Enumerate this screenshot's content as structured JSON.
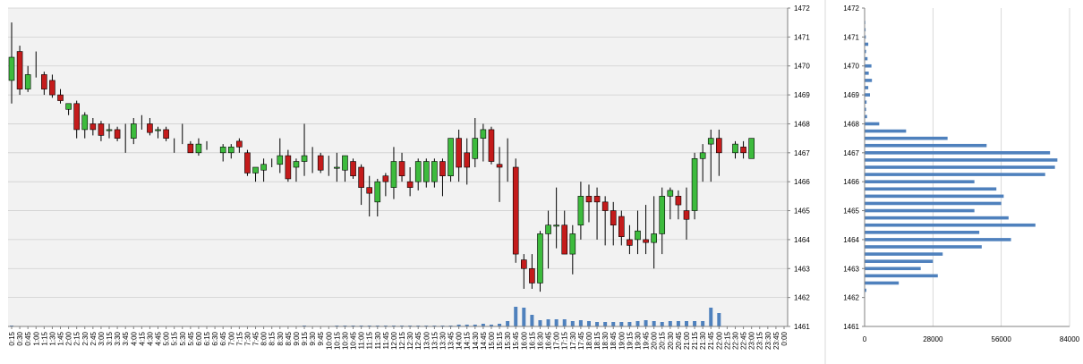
{
  "colors": {
    "plot_bg": "#f2f2f2",
    "grid": "#cfcfcf",
    "up": "#3dbb3d",
    "down": "#c41b1b",
    "wick": "#000000",
    "volume": "#4f81bd",
    "profile": "#4f81bd",
    "axis": "#808080"
  },
  "chart_data": [
    {
      "type": "candlestick",
      "title": "",
      "xlabel": "",
      "ylabel": "",
      "ylim": [
        1461,
        1472
      ],
      "y_ticks": [
        "1461",
        "1462",
        "1463",
        "1464",
        "1465",
        "1466",
        "1467",
        "1468",
        "1469",
        "1470",
        "1471",
        "1472"
      ],
      "grid": true,
      "x_tick_labels": [
        "0:15",
        "0:30",
        "0:45",
        "1:00",
        "1:15",
        "1:30",
        "1:45",
        "2:00",
        "2:15",
        "2:30",
        "2:45",
        "3:00",
        "3:15",
        "3:30",
        "3:45",
        "4:00",
        "4:15",
        "4:30",
        "4:45",
        "5:00",
        "5:15",
        "5:30",
        "5:45",
        "6:00",
        "6:15",
        "6:30",
        "6:45",
        "7:00",
        "7:15",
        "7:30",
        "7:45",
        "8:00",
        "8:15",
        "8:30",
        "8:45",
        "9:00",
        "9:15",
        "9:30",
        "9:45",
        "10:00",
        "10:15",
        "10:30",
        "10:45",
        "11:00",
        "11:15",
        "11:30",
        "11:45",
        "12:00",
        "12:15",
        "12:30",
        "12:45",
        "13:00",
        "13:15",
        "13:30",
        "13:45",
        "14:00",
        "14:15",
        "14:30",
        "14:45",
        "15:00",
        "15:15",
        "15:30",
        "15:45",
        "16:00",
        "16:15",
        "16:30",
        "16:45",
        "17:00",
        "17:15",
        "17:30",
        "17:45",
        "18:00",
        "18:15",
        "18:30",
        "18:45",
        "19:00",
        "19:15",
        "19:30",
        "19:45",
        "20:00",
        "20:15",
        "20:30",
        "20:45",
        "21:00",
        "21:15",
        "21:30",
        "21:45",
        "22:00",
        "22:15",
        "22:30",
        "22:45",
        "23:00",
        "23:15",
        "23:30",
        "23:45",
        "0:00"
      ],
      "candles": [
        {
          "x": "0:15",
          "o": 1469.5,
          "h": 1471.5,
          "l": 1468.7,
          "c": 1470.3
        },
        {
          "x": "0:30",
          "o": 1470.5,
          "h": 1470.7,
          "l": 1469.0,
          "c": 1469.2
        },
        {
          "x": "0:45",
          "o": 1469.2,
          "h": 1470.0,
          "l": 1469.1,
          "c": 1469.7
        },
        {
          "x": "1:00",
          "o": null,
          "h": 1470.5,
          "l": 1469.6,
          "c": null
        },
        {
          "x": "1:15",
          "o": 1469.7,
          "h": 1469.8,
          "l": 1469.0,
          "c": 1469.2
        },
        {
          "x": "1:30",
          "o": 1469.5,
          "h": 1469.7,
          "l": 1468.9,
          "c": 1469.0
        },
        {
          "x": "1:45",
          "o": 1469.0,
          "h": 1469.2,
          "l": 1468.7,
          "c": 1468.8
        },
        {
          "x": "2:00",
          "o": 1468.5,
          "h": 1468.7,
          "l": 1468.3,
          "c": 1468.7
        },
        {
          "x": "2:15",
          "o": 1468.7,
          "h": 1468.8,
          "l": 1467.5,
          "c": 1467.8
        },
        {
          "x": "2:30",
          "o": 1467.8,
          "h": 1468.4,
          "l": 1467.5,
          "c": 1468.3
        },
        {
          "x": "2:45",
          "o": 1468.0,
          "h": 1468.2,
          "l": 1467.6,
          "c": 1467.8
        },
        {
          "x": "3:00",
          "o": 1468.0,
          "h": 1468.1,
          "l": 1467.4,
          "c": 1467.6
        },
        {
          "x": "3:15",
          "o": 1467.8,
          "h": 1468.0,
          "l": 1467.5,
          "c": 1467.8
        },
        {
          "x": "3:30",
          "o": 1467.8,
          "h": 1467.9,
          "l": 1467.4,
          "c": 1467.5
        },
        {
          "x": "3:45",
          "o": null,
          "h": 1468.0,
          "l": 1467.0,
          "c": null
        },
        {
          "x": "4:00",
          "o": 1467.5,
          "h": 1468.2,
          "l": 1467.3,
          "c": 1468.0
        },
        {
          "x": "4:15",
          "o": null,
          "h": 1468.3,
          "l": 1467.8,
          "c": null
        },
        {
          "x": "4:30",
          "o": 1468.0,
          "h": 1468.2,
          "l": 1467.6,
          "c": 1467.7
        },
        {
          "x": "4:45",
          "o": 1467.8,
          "h": 1467.9,
          "l": 1467.5,
          "c": 1467.8
        },
        {
          "x": "5:00",
          "o": 1467.8,
          "h": 1467.9,
          "l": 1467.4,
          "c": 1467.5
        },
        {
          "x": "5:15",
          "o": null,
          "h": 1467.5,
          "l": 1467.0,
          "c": null
        },
        {
          "x": "5:30",
          "o": null,
          "h": 1468.0,
          "l": 1467.3,
          "c": null
        },
        {
          "x": "5:45",
          "o": 1467.3,
          "h": 1467.4,
          "l": 1467.0,
          "c": 1467.0
        },
        {
          "x": "6:00",
          "o": 1467.0,
          "h": 1467.5,
          "l": 1466.9,
          "c": 1467.3
        },
        {
          "x": "6:15",
          "o": null,
          "h": 1467.4,
          "l": 1467.1,
          "c": null
        },
        {
          "x": "6:30",
          "o": null,
          "h": null,
          "l": null,
          "c": null
        },
        {
          "x": "6:45",
          "o": 1467.0,
          "h": 1467.3,
          "l": 1466.7,
          "c": 1467.2
        },
        {
          "x": "7:00",
          "o": 1467.0,
          "h": 1467.3,
          "l": 1466.8,
          "c": 1467.2
        },
        {
          "x": "7:15",
          "o": 1467.4,
          "h": 1467.5,
          "l": 1467.0,
          "c": 1467.2
        },
        {
          "x": "7:30",
          "o": 1467.0,
          "h": 1467.1,
          "l": 1466.2,
          "c": 1466.3
        },
        {
          "x": "7:45",
          "o": 1466.3,
          "h": 1466.5,
          "l": 1466.0,
          "c": 1466.5
        },
        {
          "x": "8:00",
          "o": 1466.4,
          "h": 1466.8,
          "l": 1466.0,
          "c": 1466.6
        },
        {
          "x": "8:15",
          "o": null,
          "h": 1466.8,
          "l": 1466.5,
          "c": null
        },
        {
          "x": "8:30",
          "o": 1466.6,
          "h": 1467.5,
          "l": 1466.3,
          "c": 1466.9
        },
        {
          "x": "8:45",
          "o": 1466.9,
          "h": 1467.1,
          "l": 1466.0,
          "c": 1466.1
        },
        {
          "x": "9:00",
          "o": 1466.5,
          "h": 1466.8,
          "l": 1466.0,
          "c": 1466.7
        },
        {
          "x": "9:15",
          "o": 1466.7,
          "h": 1468.0,
          "l": 1466.2,
          "c": 1466.9
        },
        {
          "x": "9:30",
          "o": null,
          "h": 1467.2,
          "l": 1466.3,
          "c": null
        },
        {
          "x": "9:45",
          "o": 1466.9,
          "h": 1467.0,
          "l": 1466.3,
          "c": 1466.4
        },
        {
          "x": "10:00",
          "o": null,
          "h": 1466.9,
          "l": 1466.2,
          "c": null
        },
        {
          "x": "10:15",
          "o": 1466.5,
          "h": 1467.0,
          "l": 1466.0,
          "c": 1466.5
        },
        {
          "x": "10:30",
          "o": 1466.4,
          "h": 1466.9,
          "l": 1466.0,
          "c": 1466.9
        },
        {
          "x": "10:45",
          "o": 1466.7,
          "h": 1466.8,
          "l": 1466.1,
          "c": 1466.2
        },
        {
          "x": "11:00",
          "o": 1466.5,
          "h": 1466.6,
          "l": 1465.2,
          "c": 1465.8
        },
        {
          "x": "11:15",
          "o": 1465.8,
          "h": 1466.2,
          "l": 1464.8,
          "c": 1465.6
        },
        {
          "x": "11:30",
          "o": 1465.3,
          "h": 1466.1,
          "l": 1464.8,
          "c": 1466.0
        },
        {
          "x": "11:45",
          "o": 1466.2,
          "h": 1466.3,
          "l": 1465.5,
          "c": 1466.0
        },
        {
          "x": "12:00",
          "o": 1465.8,
          "h": 1467.2,
          "l": 1465.4,
          "c": 1466.7
        },
        {
          "x": "12:15",
          "o": 1466.7,
          "h": 1467.0,
          "l": 1466.0,
          "c": 1466.2
        },
        {
          "x": "12:30",
          "o": 1466.0,
          "h": 1466.5,
          "l": 1465.5,
          "c": 1465.8
        },
        {
          "x": "12:45",
          "o": 1466.0,
          "h": 1466.8,
          "l": 1465.7,
          "c": 1466.7
        },
        {
          "x": "13:00",
          "o": 1466.0,
          "h": 1466.8,
          "l": 1465.8,
          "c": 1466.7
        },
        {
          "x": "13:15",
          "o": 1466.0,
          "h": 1466.8,
          "l": 1465.8,
          "c": 1466.7
        },
        {
          "x": "13:30",
          "o": 1466.7,
          "h": 1466.8,
          "l": 1465.5,
          "c": 1466.2
        },
        {
          "x": "13:45",
          "o": 1466.2,
          "h": 1467.5,
          "l": 1466.0,
          "c": 1467.5
        },
        {
          "x": "14:00",
          "o": 1467.5,
          "h": 1467.8,
          "l": 1466.0,
          "c": 1466.5
        },
        {
          "x": "14:15",
          "o": 1467.0,
          "h": 1467.5,
          "l": 1465.9,
          "c": 1466.5
        },
        {
          "x": "14:30",
          "o": 1466.8,
          "h": 1468.2,
          "l": 1466.5,
          "c": 1467.5
        },
        {
          "x": "14:45",
          "o": 1467.5,
          "h": 1468.0,
          "l": 1466.7,
          "c": 1467.8
        },
        {
          "x": "15:00",
          "o": 1467.8,
          "h": 1467.9,
          "l": 1466.6,
          "c": 1466.7
        },
        {
          "x": "15:15",
          "o": 1466.6,
          "h": 1467.2,
          "l": 1465.3,
          "c": 1466.5
        },
        {
          "x": "15:30",
          "o": null,
          "h": 1467.5,
          "l": 1466.0,
          "c": null
        },
        {
          "x": "15:45",
          "o": 1466.5,
          "h": 1466.8,
          "l": 1463.2,
          "c": 1463.5
        },
        {
          "x": "16:00",
          "o": 1463.3,
          "h": 1463.5,
          "l": 1462.3,
          "c": 1463.0
        },
        {
          "x": "16:15",
          "o": 1463.0,
          "h": 1463.5,
          "l": 1462.3,
          "c": 1462.5
        },
        {
          "x": "16:30",
          "o": 1462.5,
          "h": 1464.3,
          "l": 1462.2,
          "c": 1464.2
        },
        {
          "x": "16:45",
          "o": 1464.2,
          "h": 1465.0,
          "l": 1463.0,
          "c": 1464.5
        },
        {
          "x": "17:00",
          "o": 1464.5,
          "h": 1465.8,
          "l": 1463.7,
          "c": 1464.5
        },
        {
          "x": "17:15",
          "o": 1464.5,
          "h": 1465.0,
          "l": 1463.5,
          "c": 1463.5
        },
        {
          "x": "17:30",
          "o": 1463.5,
          "h": 1464.5,
          "l": 1462.8,
          "c": 1464.2
        },
        {
          "x": "17:45",
          "o": 1464.5,
          "h": 1466.0,
          "l": 1464.0,
          "c": 1465.5
        },
        {
          "x": "18:00",
          "o": 1465.5,
          "h": 1465.9,
          "l": 1464.6,
          "c": 1465.3
        },
        {
          "x": "18:15",
          "o": 1465.5,
          "h": 1465.8,
          "l": 1464.0,
          "c": 1465.3
        },
        {
          "x": "18:30",
          "o": 1465.3,
          "h": 1465.5,
          "l": 1463.8,
          "c": 1465.0
        },
        {
          "x": "18:45",
          "o": 1465.0,
          "h": 1465.3,
          "l": 1463.8,
          "c": 1464.5
        },
        {
          "x": "19:00",
          "o": 1464.8,
          "h": 1465.0,
          "l": 1463.8,
          "c": 1464.1
        },
        {
          "x": "19:15",
          "o": 1464.0,
          "h": 1464.5,
          "l": 1463.5,
          "c": 1463.8
        },
        {
          "x": "19:30",
          "o": 1464.0,
          "h": 1465.0,
          "l": 1463.5,
          "c": 1464.3
        },
        {
          "x": "19:45",
          "o": 1464.0,
          "h": 1465.2,
          "l": 1463.5,
          "c": 1463.9
        },
        {
          "x": "20:00",
          "o": 1463.9,
          "h": 1465.5,
          "l": 1463.0,
          "c": 1464.2
        },
        {
          "x": "20:15",
          "o": 1464.2,
          "h": 1465.8,
          "l": 1463.5,
          "c": 1465.5
        },
        {
          "x": "20:30",
          "o": 1465.5,
          "h": 1465.8,
          "l": 1464.7,
          "c": 1465.7
        },
        {
          "x": "20:45",
          "o": 1465.5,
          "h": 1465.7,
          "l": 1464.7,
          "c": 1465.2
        },
        {
          "x": "21:00",
          "o": 1465.0,
          "h": 1465.8,
          "l": 1464.0,
          "c": 1464.7
        },
        {
          "x": "21:15",
          "o": 1465.0,
          "h": 1467.0,
          "l": 1464.7,
          "c": 1466.8
        },
        {
          "x": "21:30",
          "o": 1466.8,
          "h": 1467.3,
          "l": 1466.0,
          "c": 1467.0
        },
        {
          "x": "21:45",
          "o": 1467.3,
          "h": 1467.8,
          "l": 1466.0,
          "c": 1467.5
        },
        {
          "x": "22:00",
          "o": 1467.5,
          "h": 1467.8,
          "l": 1466.2,
          "c": 1467.0
        },
        {
          "x": "22:15",
          "o": null,
          "h": null,
          "l": null,
          "c": null
        },
        {
          "x": "22:30",
          "o": 1467.0,
          "h": 1467.4,
          "l": 1466.8,
          "c": 1467.3
        },
        {
          "x": "22:45",
          "o": 1467.2,
          "h": 1467.4,
          "l": 1466.8,
          "c": 1467.0
        },
        {
          "x": "23:00",
          "o": 1466.8,
          "h": 1467.5,
          "l": 1466.8,
          "c": 1467.5
        }
      ],
      "volume": [
        1,
        0,
        0,
        0,
        0,
        0,
        0,
        0,
        0,
        0,
        0,
        0,
        0,
        0,
        0,
        0,
        0,
        0,
        0,
        0,
        0,
        0,
        0,
        0,
        0,
        0,
        0,
        0,
        0,
        0,
        0,
        0,
        0,
        0,
        0,
        0,
        1,
        0,
        0,
        0,
        1,
        1,
        1,
        1,
        1,
        1,
        1,
        1,
        1,
        1,
        1,
        1,
        1,
        1,
        1,
        2,
        2,
        2,
        3,
        2,
        3,
        6,
        22,
        21,
        13,
        7,
        8,
        8,
        8,
        6,
        7,
        6,
        5,
        5,
        5,
        5,
        5,
        6,
        7,
        6,
        5,
        6,
        6,
        6,
        6,
        6,
        21,
        15,
        0,
        0,
        0,
        0,
        0,
        0,
        0,
        0
      ]
    },
    {
      "type": "bar",
      "orientation": "horizontal",
      "title": "",
      "xlabel": "",
      "ylabel": "",
      "xlim": [
        0,
        84000
      ],
      "ylim": [
        1461,
        1472
      ],
      "x_ticks": [
        "0",
        "28000",
        "56000",
        "84000"
      ],
      "y_ticks": [
        "1461",
        "1462",
        "1463",
        "1464",
        "1465",
        "1466",
        "1467",
        "1468",
        "1469",
        "1470",
        "1471",
        "1472"
      ],
      "grid": true,
      "bins": [
        {
          "price": 1462.25,
          "value": 700
        },
        {
          "price": 1462.5,
          "value": 14000
        },
        {
          "price": 1462.75,
          "value": 30000
        },
        {
          "price": 1463.0,
          "value": 23000
        },
        {
          "price": 1463.25,
          "value": 28000
        },
        {
          "price": 1463.5,
          "value": 32000
        },
        {
          "price": 1463.75,
          "value": 48000
        },
        {
          "price": 1464.0,
          "value": 60000
        },
        {
          "price": 1464.25,
          "value": 47000
        },
        {
          "price": 1464.5,
          "value": 70000
        },
        {
          "price": 1464.75,
          "value": 59000
        },
        {
          "price": 1465.0,
          "value": 45000
        },
        {
          "price": 1465.25,
          "value": 56000
        },
        {
          "price": 1465.5,
          "value": 57000
        },
        {
          "price": 1465.75,
          "value": 54000
        },
        {
          "price": 1466.0,
          "value": 45000
        },
        {
          "price": 1466.25,
          "value": 74000
        },
        {
          "price": 1466.5,
          "value": 78000
        },
        {
          "price": 1466.75,
          "value": 79000
        },
        {
          "price": 1467.0,
          "value": 76000
        },
        {
          "price": 1467.25,
          "value": 50000
        },
        {
          "price": 1467.5,
          "value": 34000
        },
        {
          "price": 1467.75,
          "value": 17000
        },
        {
          "price": 1468.0,
          "value": 6000
        },
        {
          "price": 1468.25,
          "value": 1000
        },
        {
          "price": 1468.5,
          "value": 600
        },
        {
          "price": 1468.75,
          "value": 800
        },
        {
          "price": 1469.0,
          "value": 2200
        },
        {
          "price": 1469.25,
          "value": 1500
        },
        {
          "price": 1469.5,
          "value": 3000
        },
        {
          "price": 1469.75,
          "value": 1700
        },
        {
          "price": 1470.0,
          "value": 2800
        },
        {
          "price": 1470.25,
          "value": 1200
        },
        {
          "price": 1470.5,
          "value": 600
        },
        {
          "price": 1470.75,
          "value": 1500
        },
        {
          "price": 1471.0,
          "value": 500
        },
        {
          "price": 1471.25,
          "value": 400
        },
        {
          "price": 1471.5,
          "value": 200
        }
      ]
    }
  ]
}
